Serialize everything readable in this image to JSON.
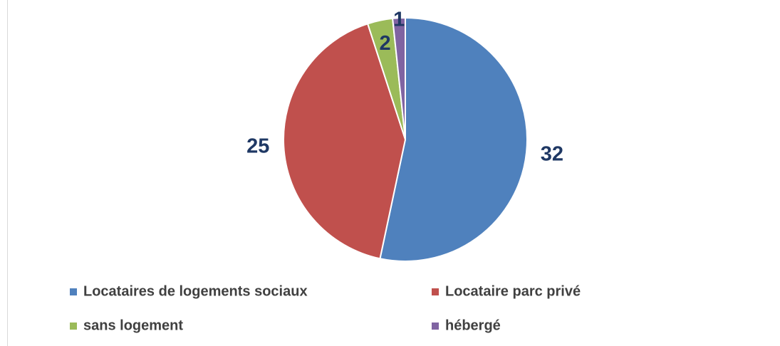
{
  "chart_data": {
    "type": "pie",
    "categories": [
      "Locataires de logements sociaux",
      "Locataire parc privé",
      "sans logement",
      "hébergé"
    ],
    "values": [
      32,
      25,
      2,
      1
    ],
    "colors": [
      "#4f81bd",
      "#c0504d",
      "#9bbb59",
      "#8064a2"
    ],
    "legend": "bottom"
  }
}
